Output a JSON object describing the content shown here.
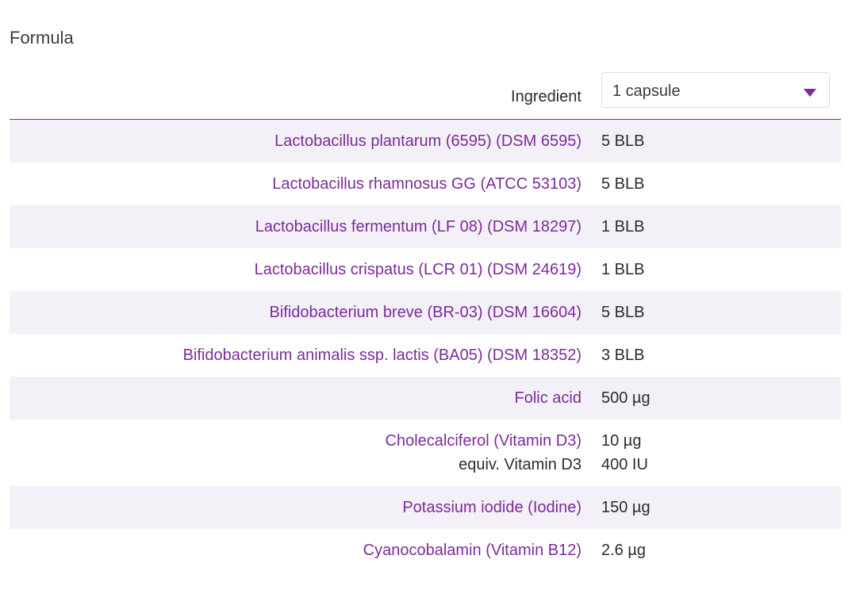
{
  "section_title": "Formula",
  "header": {
    "ingredient_label": "Ingredient",
    "serving_select": {
      "selected": "1 capsule"
    }
  },
  "colors": {
    "accent": "#7b2b9c",
    "row_alt": "#f4f0f7",
    "text": "#2b2b33"
  },
  "ingredients": [
    {
      "name": "Lactobacillus plantarum (6595) (DSM 6595)",
      "amount": "5 BLB"
    },
    {
      "name": "Lactobacillus rhamnosus GG (ATCC 53103)",
      "amount": "5 BLB"
    },
    {
      "name": "Lactobacillus fermentum (LF 08) (DSM 18297)",
      "amount": "1 BLB"
    },
    {
      "name": "Lactobacillus crispatus (LCR 01) (DSM 24619)",
      "amount": "1 BLB"
    },
    {
      "name": "Bifidobacterium breve (BR-03) (DSM 16604)",
      "amount": "5 BLB"
    },
    {
      "name": "Bifidobacterium animalis ssp. lactis (BA05) (DSM 18352)",
      "amount": "3 BLB"
    },
    {
      "name": "Folic acid",
      "amount": "500 µg"
    },
    {
      "name": "Cholecalciferol (Vitamin D3)",
      "amount": "10 µg",
      "sub_name": "equiv. Vitamin D3",
      "sub_amount": "400 IU"
    },
    {
      "name": "Potassium iodide (Iodine)",
      "amount": "150 µg"
    },
    {
      "name": "Cyanocobalamin (Vitamin B12)",
      "amount": "2.6 µg"
    }
  ]
}
